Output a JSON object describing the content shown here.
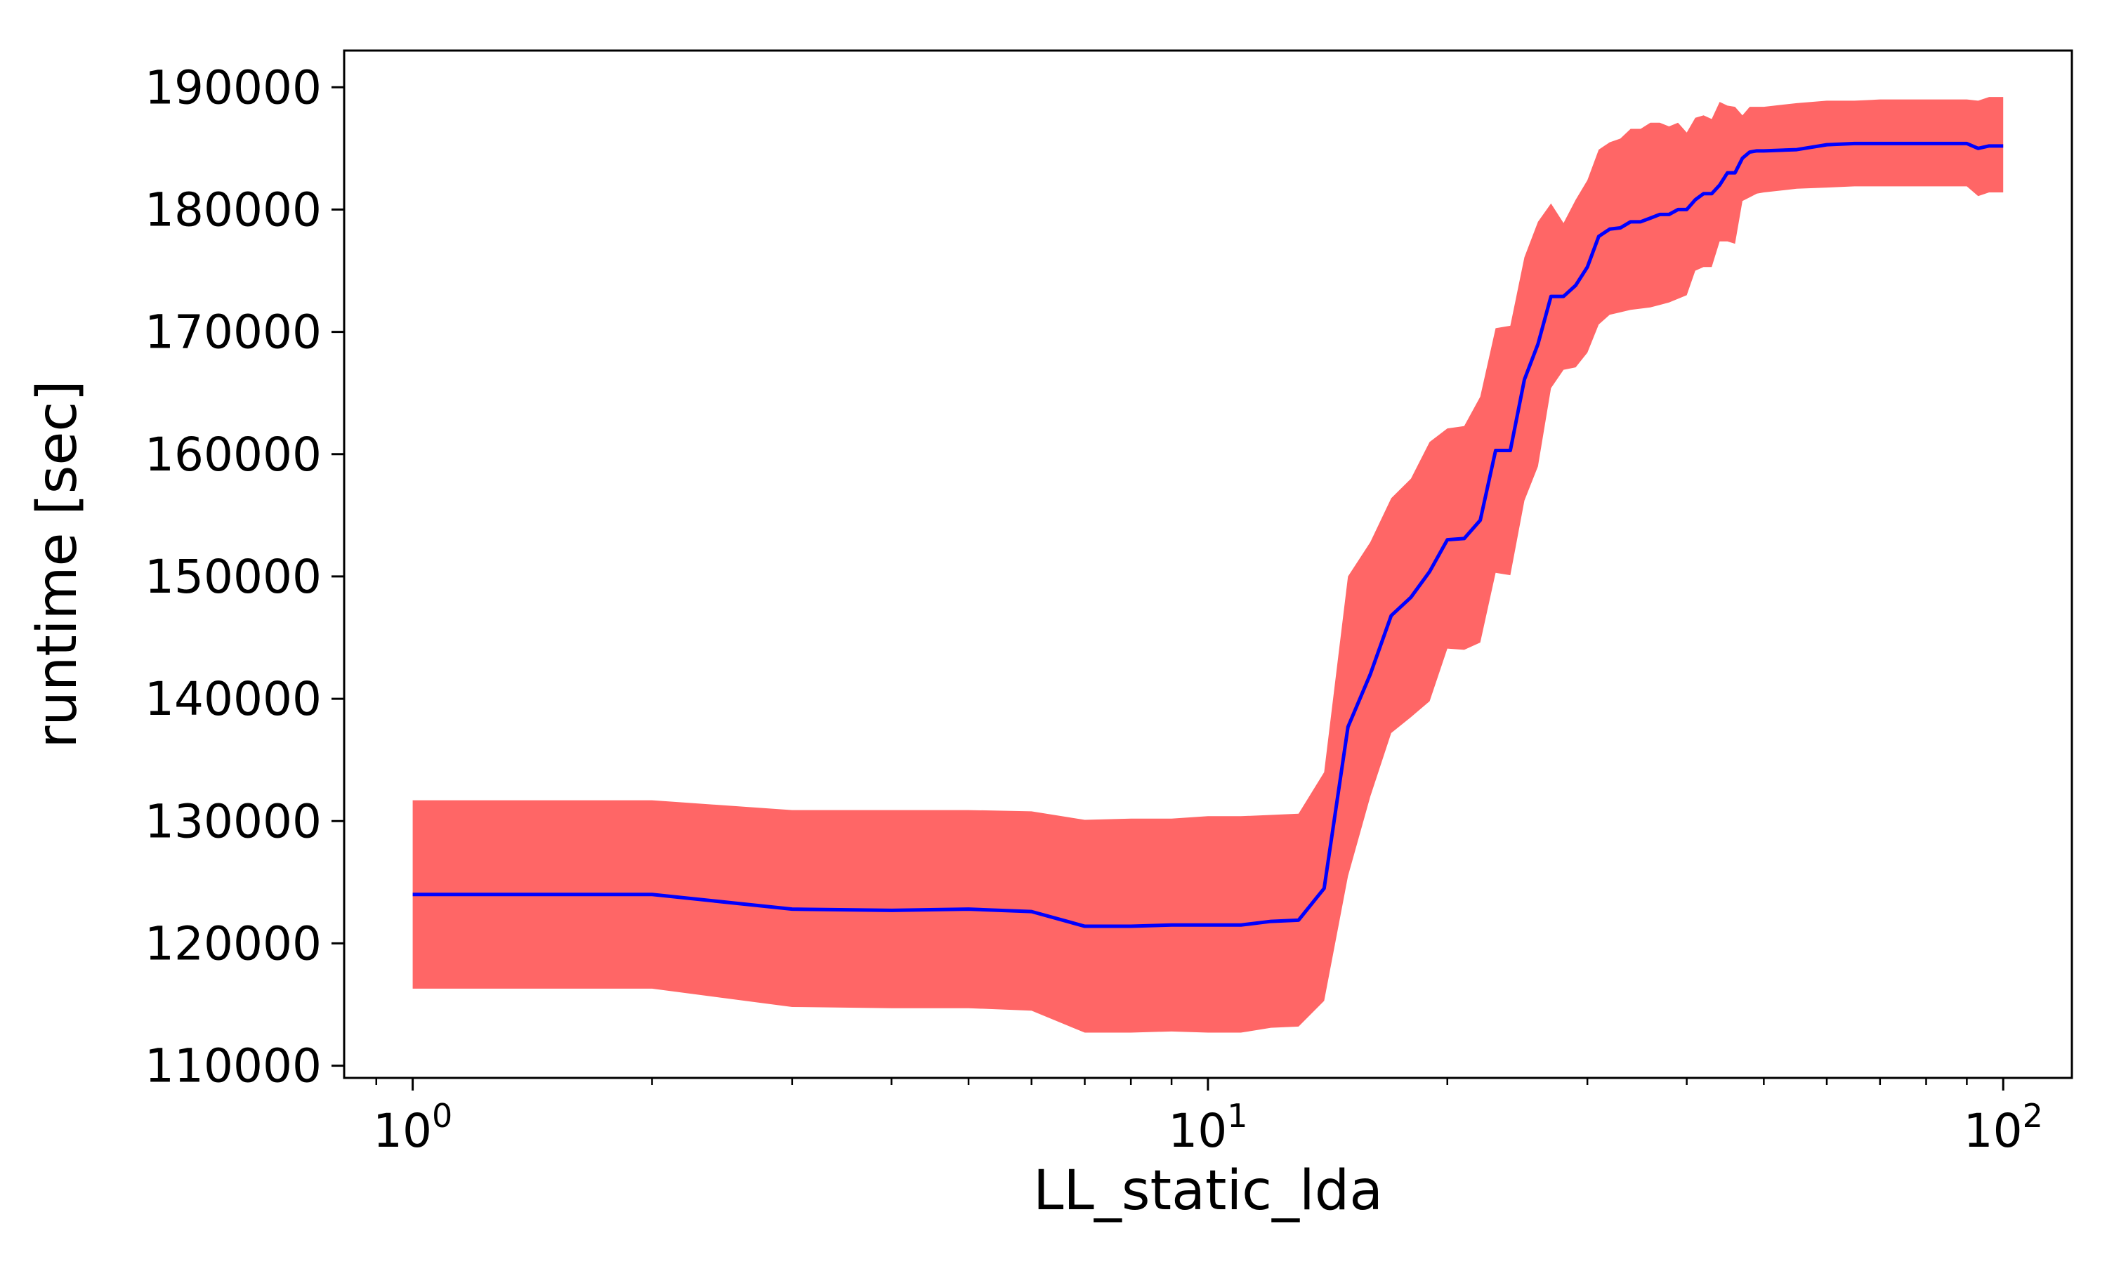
{
  "chart_data": {
    "type": "line",
    "xlabel": "LL_static_lda",
    "ylabel": "runtime [sec]",
    "x_scale": "log",
    "xlim": [
      0.82,
      122
    ],
    "ylim": [
      109000,
      193000
    ],
    "grid": false,
    "legend": "none",
    "x_ticks": [
      {
        "value": 1,
        "base": "10",
        "exp": "0"
      },
      {
        "value": 10,
        "base": "10",
        "exp": "1"
      },
      {
        "value": 100,
        "base": "10",
        "exp": "2"
      }
    ],
    "y_ticks": [
      110000,
      120000,
      130000,
      140000,
      150000,
      160000,
      170000,
      180000,
      190000
    ],
    "series": [
      {
        "color": "#0000ff",
        "band_color": "#ff6666",
        "x": [
          1,
          2,
          3,
          4,
          5,
          6,
          7,
          8,
          9,
          10,
          11,
          12,
          13,
          14,
          15,
          16,
          17,
          18,
          19,
          20,
          21,
          22,
          23,
          24,
          25,
          26,
          27,
          28,
          29,
          30,
          31,
          32,
          33,
          34,
          35,
          36,
          37,
          38,
          39,
          40,
          41,
          42,
          43,
          44,
          45,
          46,
          47,
          48,
          49,
          50,
          55,
          60,
          65,
          70,
          80,
          90,
          93,
          96,
          100
        ],
        "y": [
          124000,
          124000,
          122800,
          122700,
          122800,
          122600,
          121400,
          121400,
          121500,
          121500,
          121500,
          121800,
          121900,
          124500,
          137700,
          142000,
          146800,
          148300,
          150400,
          153000,
          153100,
          154600,
          160300,
          160300,
          166100,
          169000,
          172900,
          172900,
          173800,
          175300,
          177800,
          178400,
          178500,
          179000,
          179000,
          179300,
          179600,
          179600,
          180000,
          180000,
          180800,
          181300,
          181300,
          182000,
          183000,
          183000,
          184200,
          184700,
          184800,
          184800,
          184900,
          185300,
          185400,
          185400,
          185400,
          185400,
          185000,
          185200,
          185200
        ],
        "upper": [
          131700,
          131700,
          130900,
          130900,
          130900,
          130800,
          130100,
          130200,
          130200,
          130400,
          130400,
          130500,
          130600,
          134000,
          150000,
          152800,
          156400,
          158000,
          161000,
          162100,
          162300,
          164700,
          170300,
          170500,
          176100,
          179000,
          180500,
          178900,
          180800,
          182400,
          184900,
          185500,
          185800,
          186600,
          186600,
          187100,
          187100,
          186800,
          187100,
          186300,
          187500,
          187700,
          187400,
          188800,
          188500,
          188400,
          187700,
          188400,
          188400,
          188400,
          188700,
          188900,
          188900,
          189000,
          189000,
          189000,
          188900,
          189200,
          189200
        ],
        "lower": [
          116300,
          116300,
          114800,
          114700,
          114700,
          114500,
          112700,
          112700,
          112800,
          112700,
          112700,
          113100,
          113200,
          115300,
          125500,
          132000,
          137200,
          138500,
          139800,
          144100,
          144000,
          144600,
          150300,
          150100,
          156200,
          159000,
          165400,
          166900,
          167100,
          168300,
          170600,
          171400,
          171600,
          171800,
          171900,
          172000,
          172200,
          172400,
          172700,
          173000,
          175000,
          175300,
          175300,
          177400,
          177400,
          177200,
          180700,
          181000,
          181300,
          181400,
          181700,
          181800,
          181900,
          181900,
          181900,
          181900,
          181100,
          181400,
          181400
        ]
      }
    ]
  }
}
